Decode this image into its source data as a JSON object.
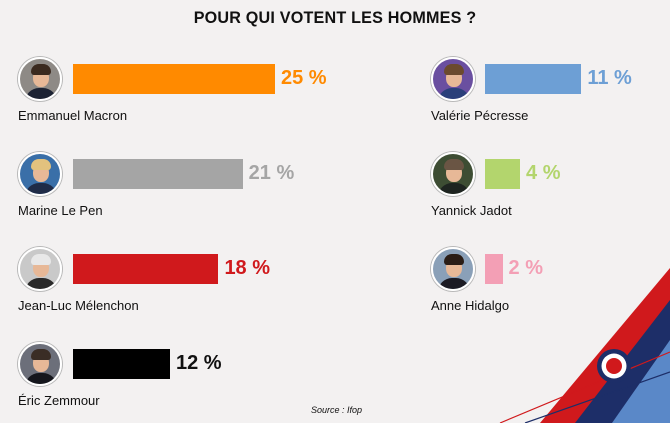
{
  "title": "POUR QUI VOTENT LES HOMMES ?",
  "source": "Source :  Ifop",
  "chart_data": {
    "type": "bar",
    "title": "POUR QUI VOTENT LES HOMMES ?",
    "orientation": "horizontal",
    "unit": "%",
    "xlim": [
      0,
      25
    ],
    "categories": [
      "Emmanuel Macron",
      "Marine Le Pen",
      "Jean-Luc Mélenchon",
      "Éric Zemmour",
      "Valérie Pécresse",
      "Yannick Jadot",
      "Anne Hidalgo"
    ],
    "values": [
      25,
      21,
      18,
      12,
      11,
      4,
      2
    ],
    "labels": [
      "25 %",
      "21 %",
      "18 %",
      "12 %",
      "11 %",
      "4 %",
      "2 %"
    ],
    "colors": [
      "#ff8a00",
      "#a5a5a5",
      "#d0191c",
      "#000000",
      "#6d9fd5",
      "#b3d56d",
      "#f39fb5"
    ],
    "label_colors": [
      "#ff8a00",
      "#a5a5a5",
      "#d0191c",
      "#111111",
      "#6d9fd5",
      "#b3d56d",
      "#f39fb5"
    ],
    "columns": [
      "left",
      "left",
      "left",
      "left",
      "right",
      "right",
      "right"
    ]
  },
  "avatars": [
    {
      "icon": "emmanuel-macron-photo",
      "bg": "#8e8a86",
      "hair": "#3b2a1f",
      "body": "#1c2233"
    },
    {
      "icon": "marine-le-pen-photo",
      "bg": "#3a6fa8",
      "hair": "#e2c27e",
      "body": "#1f2b47"
    },
    {
      "icon": "jean-luc-melenchon-photo",
      "bg": "#c9c9c9",
      "hair": "#e8e8e8",
      "body": "#2a2a2a"
    },
    {
      "icon": "eric-zemmour-photo",
      "bg": "#6c6f7a",
      "hair": "#3a2d25",
      "body": "#15161c"
    },
    {
      "icon": "valerie-pecresse-photo",
      "bg": "#6a4fa0",
      "hair": "#6b4a2e",
      "body": "#2a3f7a"
    },
    {
      "icon": "yannick-jadot-photo",
      "bg": "#3d4d33",
      "hair": "#6a5544",
      "body": "#1e2420"
    },
    {
      "icon": "anne-hidalgo-photo",
      "bg": "#8aa0b8",
      "hair": "#2a1d16",
      "body": "#1b1b24"
    }
  ]
}
